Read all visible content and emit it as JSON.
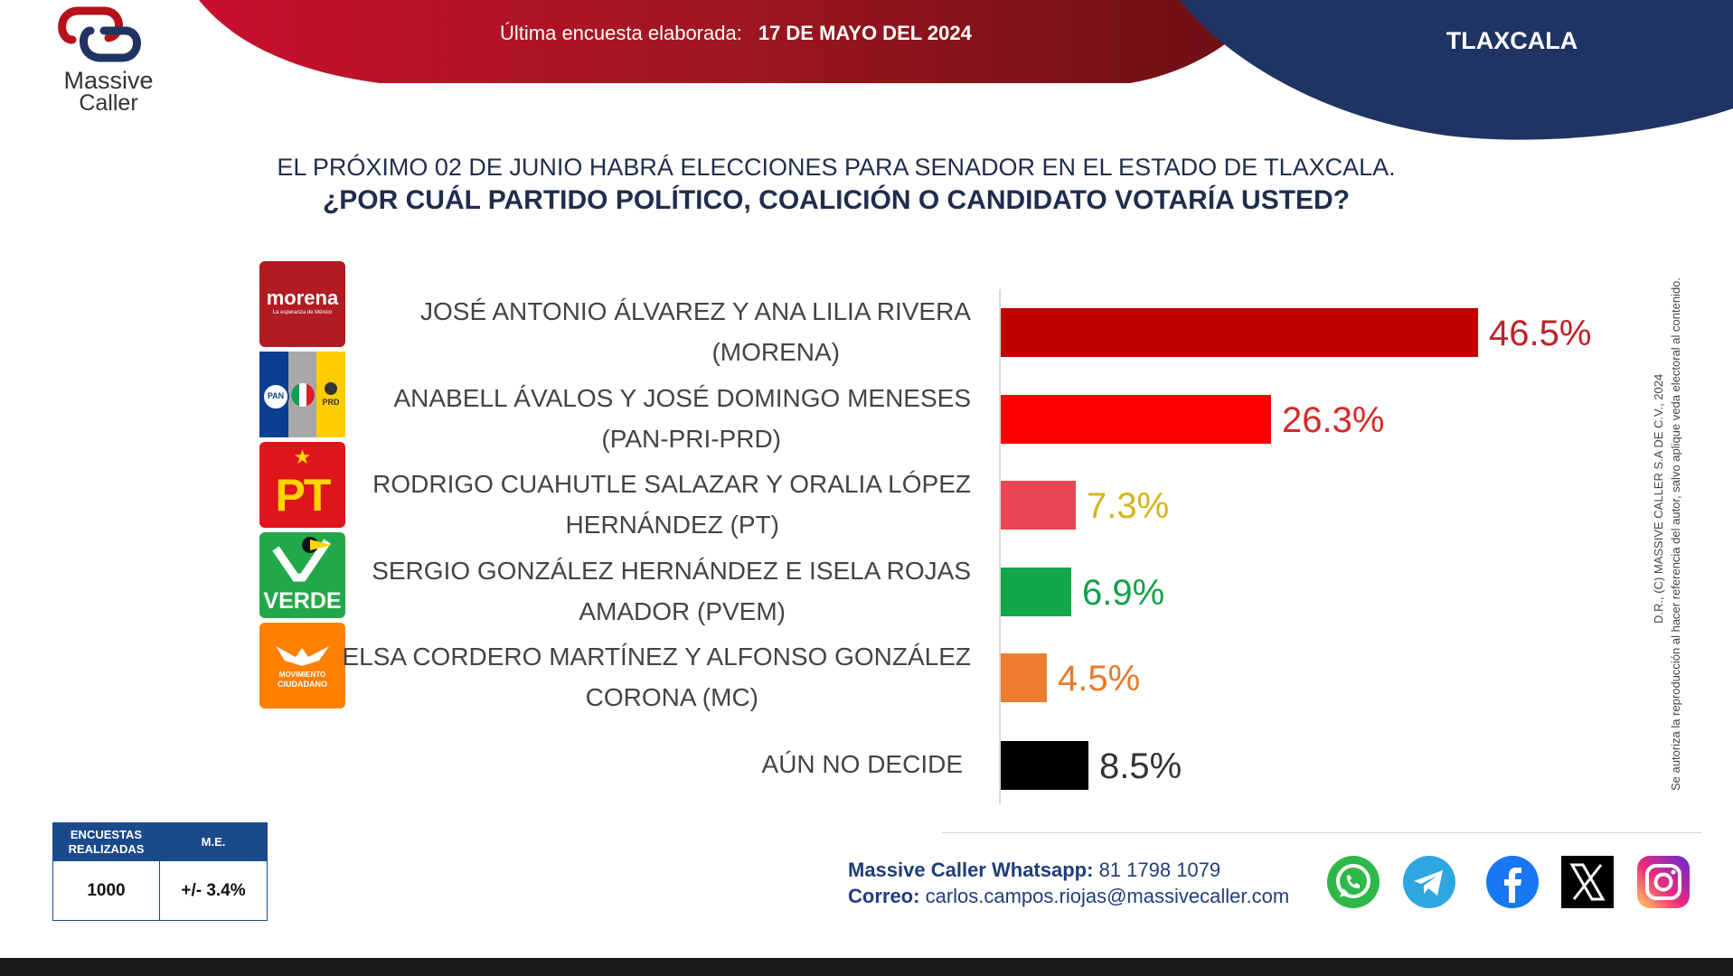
{
  "header": {
    "brand_line1": "Massive",
    "brand_line2": "Caller",
    "survey_label": "Última encuesta elaborada:",
    "survey_date": "17 DE MAYO DEL 2024",
    "state": "TLAXCALA"
  },
  "question": {
    "line1": "EL PRÓXIMO 02 DE JUNIO HABRÁ ELECCIONES PARA SENADOR EN EL ESTADO DE TLAXCALA.",
    "line2": "¿POR CUÁL PARTIDO POLÍTICO, COALICIÓN O CANDIDATO  VOTARÍA USTED?"
  },
  "party_logos": {
    "morena_main": "morena",
    "morena_sub": "La esperanza de México",
    "pan": "PAN",
    "prd": "PRD",
    "pt": "PT",
    "verde": "VERDE",
    "mc_line1": "MOVIMIENTO",
    "mc_line2": "CIUDADANO"
  },
  "chart_data": {
    "type": "bar",
    "orientation": "horizontal",
    "categories": [
      [
        "JOSÉ ANTONIO ÁLVAREZ Y ANA LILIA RIVERA",
        "(MORENA)"
      ],
      [
        "ANABELL ÁVALOS Y JOSÉ DOMINGO MENESES",
        "(PAN-PRI-PRD)"
      ],
      [
        "RODRIGO CUAHUTLE SALAZAR Y ORALIA LÓPEZ",
        "HERNÁNDEZ (PT)"
      ],
      [
        "SERGIO GONZÁLEZ HERNÁNDEZ  E ISELA ROJAS",
        "AMADOR (PVEM)"
      ],
      [
        "ELSA CORDERO MARTÍNEZ Y ALFONSO GONZÁLEZ",
        "CORONA (MC)"
      ],
      [
        "AÚN NO DECIDE"
      ]
    ],
    "values": [
      46.5,
      26.3,
      7.3,
      6.9,
      4.5,
      8.5
    ],
    "value_labels": [
      "46.5%",
      "26.3%",
      "7.3%",
      "6.9%",
      "4.5%",
      "8.5%"
    ],
    "bar_colors": [
      "#c00000",
      "#ff0000",
      "#e84855",
      "#12a84a",
      "#ed7d31",
      "#000000"
    ],
    "label_colors": [
      "#c0202a",
      "#d62a2a",
      "#d4b51c",
      "#14a04a",
      "#e87a2a",
      "#333333"
    ],
    "xlim": [
      0,
      46.5
    ],
    "grid": false
  },
  "stats": {
    "col1_header": "ENCUESTAS REALIZADAS",
    "col2_header": "M.E.",
    "col1_value": "1000",
    "col2_value": "+/- 3.4%"
  },
  "contact": {
    "whatsapp_label": "Massive Caller Whatsapp:",
    "whatsapp_number": "81 1798 1079",
    "email_label": "Correo:",
    "email": "carlos.campos.riojas@massivecaller.com"
  },
  "social_icons": [
    "whatsapp-icon",
    "telegram-icon",
    "facebook-icon",
    "x-icon",
    "instagram-icon"
  ],
  "legal": {
    "line1": "D.R., (C) MASSIVE CALLER S.A DE C.V., 2024",
    "line2": "Se autoriza la reproducción al hacer referencia del autor, salvo aplique veda electoral al contenido."
  },
  "colors": {
    "header_red": "#b0141f",
    "header_navy": "#1f3463",
    "table_blue": "#1a4a8c",
    "text_navy": "#1f2d4d"
  }
}
